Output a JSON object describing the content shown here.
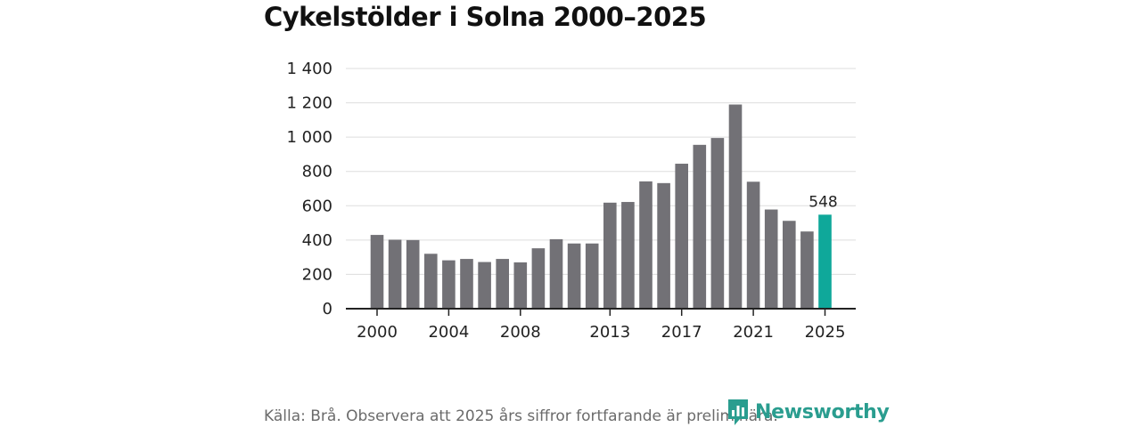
{
  "chart_data": {
    "type": "bar",
    "title": "Cykelstölder i Solna 2000–2025",
    "xlabel": "",
    "ylabel": "",
    "ylim": [
      0,
      1400
    ],
    "y_ticks": [
      0,
      200,
      400,
      600,
      800,
      1000,
      1200,
      1400
    ],
    "y_tick_labels": [
      "0",
      "200",
      "400",
      "600",
      "800",
      "1 000",
      "1 200",
      "1 400"
    ],
    "x_tick_labels": [
      "2000",
      "2004",
      "2008",
      "2013",
      "2017",
      "2021",
      "2025"
    ],
    "grid": true,
    "categories": [
      "2000",
      "2001",
      "2002",
      "2003",
      "2004",
      "2005",
      "2006",
      "2007",
      "2008",
      "2009",
      "2010",
      "2011",
      "2012",
      "2013",
      "2014",
      "2015",
      "2016",
      "2017",
      "2018",
      "2019",
      "2020",
      "2021",
      "2022",
      "2023",
      "2024",
      "2025"
    ],
    "values": [
      430,
      402,
      400,
      320,
      282,
      290,
      272,
      290,
      270,
      352,
      405,
      380,
      380,
      618,
      622,
      742,
      732,
      845,
      955,
      995,
      1190,
      740,
      578,
      512,
      450,
      548
    ],
    "annotations": [
      {
        "category": "2025",
        "text": "548"
      }
    ],
    "colors": {
      "bar": "#727176",
      "highlight": "#0fa89a",
      "grid": "#dddddd",
      "axis": "#222222"
    }
  },
  "footer": {
    "source": "Källa: Brå. Observera att 2025 års siffror fortfarande är preliminära.",
    "brand_name": "Newsworthy",
    "brand_color": "#2a9d8f",
    "brand_icon": "newsworthy-logo-icon"
  }
}
